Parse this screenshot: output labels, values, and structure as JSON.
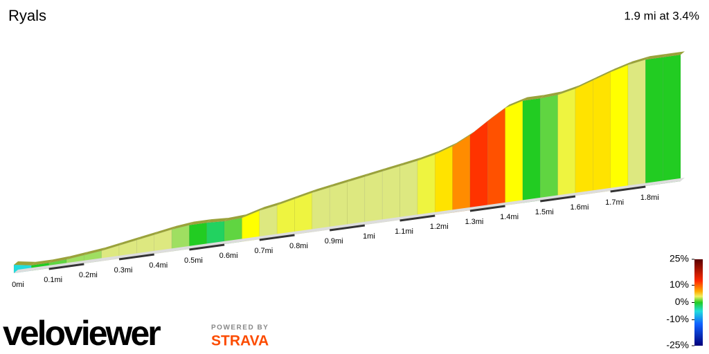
{
  "chart_data": {
    "type": "elevation-profile",
    "title": "Ryals",
    "subtitle": "1.9 mi at 3.4%",
    "x": [
      0,
      0.05,
      0.1,
      0.15,
      0.2,
      0.25,
      0.3,
      0.35,
      0.4,
      0.45,
      0.5,
      0.55,
      0.6,
      0.65,
      0.7,
      0.75,
      0.8,
      0.85,
      0.9,
      0.95,
      1,
      1.05,
      1.1,
      1.15,
      1.2,
      1.25,
      1.3,
      1.35,
      1.4,
      1.45,
      1.5,
      1.55,
      1.6,
      1.65,
      1.7,
      1.75,
      1.8,
      1.85
    ],
    "values": [
      -3,
      0,
      1,
      2,
      2,
      3,
      3,
      3,
      3,
      2,
      0,
      -1,
      1,
      5,
      3,
      4,
      4,
      3,
      3,
      3,
      3,
      3,
      3,
      4,
      6,
      9,
      12,
      11,
      5,
      0,
      1,
      4,
      6,
      6,
      5,
      3,
      0,
      0
    ],
    "xlim": [
      0,
      1.9
    ],
    "xticks": [
      {
        "value": 0,
        "label": "0mi"
      },
      {
        "value": 0.1,
        "label": "0.1mi"
      },
      {
        "value": 0.2,
        "label": "0.2mi"
      },
      {
        "value": 0.3,
        "label": "0.3mi"
      },
      {
        "value": 0.4,
        "label": "0.4mi"
      },
      {
        "value": 0.5,
        "label": "0.5mi"
      },
      {
        "value": 0.6,
        "label": "0.6mi"
      },
      {
        "value": 0.7,
        "label": "0.7mi"
      },
      {
        "value": 0.8,
        "label": "0.8mi"
      },
      {
        "value": 0.9,
        "label": "0.9mi"
      },
      {
        "value": 1,
        "label": "1mi"
      },
      {
        "value": 1.1,
        "label": "1.1mi"
      },
      {
        "value": 1.2,
        "label": "1.2mi"
      },
      {
        "value": 1.3,
        "label": "1.3mi"
      },
      {
        "value": 1.4,
        "label": "1.4mi"
      },
      {
        "value": 1.5,
        "label": "1.5mi"
      },
      {
        "value": 1.6,
        "label": "1.6mi"
      },
      {
        "value": 1.7,
        "label": "1.7mi"
      },
      {
        "value": 1.8,
        "label": "1.8mi"
      }
    ],
    "clim": [
      -25,
      25
    ],
    "cticks": [
      {
        "value": 25,
        "label": "25%"
      },
      {
        "value": 10,
        "label": "10%"
      },
      {
        "value": 0,
        "label": "0%"
      },
      {
        "value": -10,
        "label": "-10%"
      },
      {
        "value": -25,
        "label": "-25%"
      }
    ],
    "logo": "veloviewer",
    "powered_by": "POWERED BY",
    "partner": "STRAVA"
  }
}
